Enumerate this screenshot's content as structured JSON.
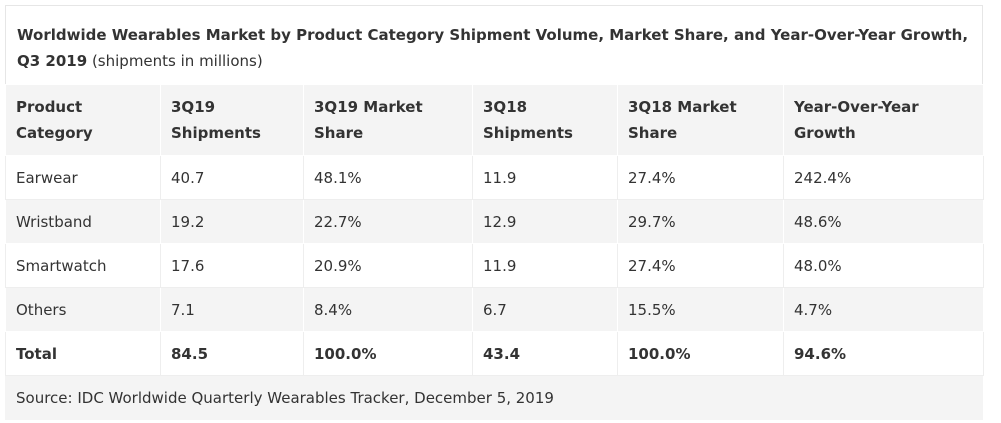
{
  "title": {
    "main": "Worldwide Wearables Market by Product Category Shipment Volume, Market Share, and Year-Over-Year Growth, Q3 2019",
    "note": "(shipments in millions)"
  },
  "table": {
    "header": [
      "Product Category",
      "3Q19 Shipments",
      "3Q19 Market Share",
      "3Q18 Shipments",
      "3Q18 Market Share",
      "Year-Over-Year Growth"
    ],
    "rows": [
      [
        "Earwear",
        "40.7",
        "48.1%",
        "11.9",
        "27.4%",
        "242.4%"
      ],
      [
        "Wristband",
        "19.2",
        "22.7%",
        "12.9",
        "29.7%",
        "48.6%"
      ],
      [
        "Smartwatch",
        "17.6",
        "20.9%",
        "11.9",
        "27.4%",
        "48.0%"
      ],
      [
        "Others",
        "7.1",
        "8.4%",
        "6.7",
        "15.5%",
        "4.7%"
      ]
    ],
    "total": [
      "Total",
      "84.5",
      "100.0%",
      "43.4",
      "100.0%",
      "94.6%"
    ]
  },
  "source": "Source: IDC Worldwide Quarterly Wearables Tracker, December 5, 2019"
}
